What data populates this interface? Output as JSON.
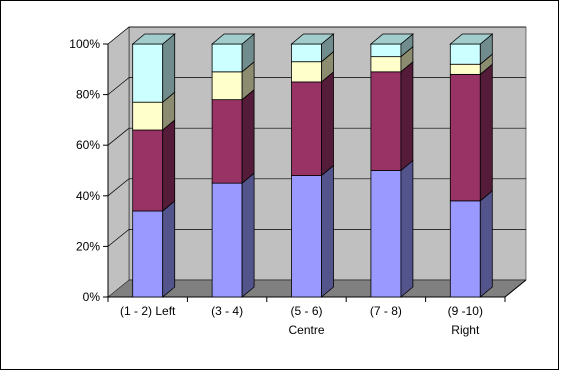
{
  "chart_data": {
    "type": "bar",
    "stacked": true,
    "percent_stacked": true,
    "three_d": true,
    "categories": [
      [
        "(1 - 2) Left"
      ],
      [
        "(3 - 4)"
      ],
      [
        "(5 - 6)",
        "Centre"
      ],
      [
        "(7 - 8)"
      ],
      [
        "(9 -10)",
        "Right"
      ]
    ],
    "series": [
      {
        "values": [
          34,
          45,
          48,
          50,
          38
        ],
        "color": "#9999ff"
      },
      {
        "values": [
          32,
          33,
          37,
          39,
          50
        ],
        "color": "#993366"
      },
      {
        "values": [
          11,
          11,
          8,
          6,
          4
        ],
        "color": "#ffffcc"
      },
      {
        "values": [
          23,
          11,
          7,
          5,
          8
        ],
        "color": "#ccffff"
      }
    ],
    "ylim": [
      0,
      100
    ],
    "yticks": [
      "0%",
      "20%",
      "40%",
      "60%",
      "80%",
      "100%"
    ],
    "grid": true,
    "legend": "none",
    "colors": {
      "wall": "#c0c0c0",
      "floor": "#808080",
      "gridline": "#000000"
    }
  }
}
